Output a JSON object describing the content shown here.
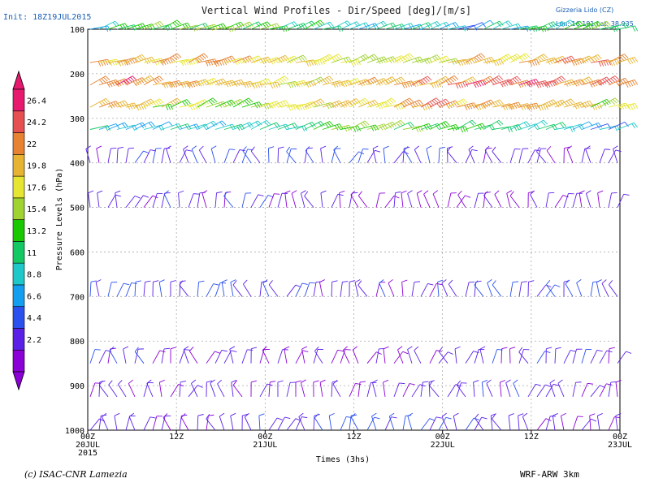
{
  "header": {
    "title": "Vertical Wind Profiles - Dir/Speed [deg]/[m/s]",
    "init": "Init: 18Z19JUL2015",
    "location_name": "Gizzeria Lido (CZ)",
    "location_coords": "Lon: 16.191 Lat: 38.935"
  },
  "footer": {
    "credit": "(c) ISAC-CNR Lamezia",
    "model": "WRF-ARW 3km"
  },
  "colors": {
    "palette": [
      "#8b00d6",
      "#5a20e8",
      "#2a50ee",
      "#149ef0",
      "#1ec8c8",
      "#14c864",
      "#19c800",
      "#a0d232",
      "#e6e632",
      "#e6b432",
      "#e68232",
      "#e65050",
      "#e6196e"
    ]
  },
  "chart_data": {
    "type": "wind-barb",
    "title": "Vertical Wind Profiles - Dir/Speed [deg]/[m/s]",
    "xlabel": "Times (3hs)",
    "ylabel": "Pressure Levels (hPa)",
    "ylim": [
      1000,
      100
    ],
    "y_ticks": [
      "100",
      "200",
      "300",
      "400",
      "500",
      "600",
      "700",
      "800",
      "900",
      "1000"
    ],
    "x_ticks": [
      {
        "line1": "00Z",
        "line2": "20JUL",
        "line3": "2015"
      },
      {
        "line1": "12Z",
        "line2": "",
        "line3": ""
      },
      {
        "line1": "00Z",
        "line2": "21JUL",
        "line3": ""
      },
      {
        "line1": "12Z",
        "line2": "",
        "line3": ""
      },
      {
        "line1": "00Z",
        "line2": "22JUL",
        "line3": ""
      },
      {
        "line1": "12Z",
        "line2": "",
        "line3": ""
      },
      {
        "line1": "00Z",
        "line2": "23JUL",
        "line3": ""
      }
    ],
    "grid": true,
    "colorbar": {
      "label_values": [
        "26.4",
        "24.2",
        "22",
        "19.8",
        "17.6",
        "15.4",
        "13.2",
        "11",
        "8.8",
        "6.6",
        "4.4",
        "2.2"
      ],
      "units": "m/s"
    },
    "levels_hpa": [
      100,
      175,
      225,
      275,
      325,
      400,
      500,
      700,
      850,
      925,
      1000
    ],
    "mean_speed_ms": [
      11.5,
      19.5,
      21.5,
      19.5,
      11.5,
      4.0,
      2.5,
      4.0,
      2.5,
      2.5,
      3.5
    ]
  }
}
